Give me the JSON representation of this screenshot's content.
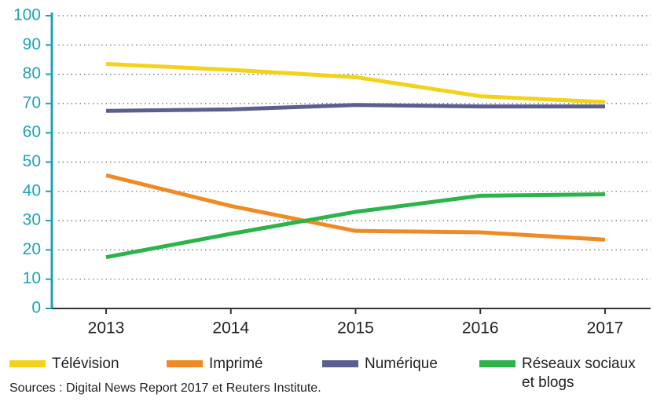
{
  "chart_data": {
    "type": "line",
    "categories": [
      "2013",
      "2014",
      "2015",
      "2016",
      "2017"
    ],
    "series": [
      {
        "name": "Télévision",
        "color": "#f2d21b",
        "values": [
          83.5,
          81.5,
          79,
          72.5,
          70.5
        ]
      },
      {
        "name": "Imprimé",
        "color": "#f08a24",
        "values": [
          45.5,
          35,
          26.5,
          26,
          23.5
        ]
      },
      {
        "name": "Numérique",
        "color": "#5a5f8f",
        "values": [
          67.5,
          68,
          69.5,
          69,
          69
        ]
      },
      {
        "name": "Réseaux sociaux et blogs",
        "color": "#2cb34a",
        "values": [
          17.5,
          25.5,
          33,
          38.5,
          39
        ]
      }
    ],
    "ylim": [
      0,
      100
    ],
    "yticks": [
      0,
      10,
      20,
      30,
      40,
      50,
      60,
      70,
      80,
      90,
      100
    ],
    "grid": true,
    "source": "Sources : Digital News Report 2017 et Reuters Institute."
  }
}
